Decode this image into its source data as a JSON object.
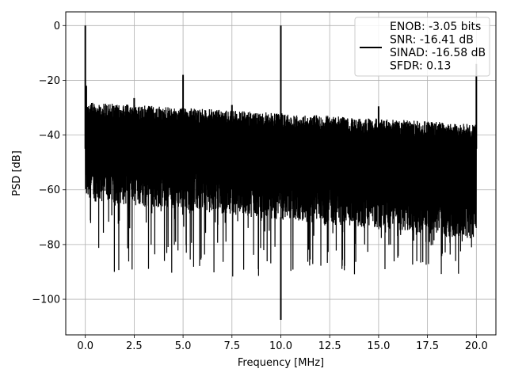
{
  "chart_data": {
    "type": "line",
    "xlabel": "Frequency [MHz]",
    "ylabel": "PSD [dB]",
    "xlim": [
      -1.0,
      21.0
    ],
    "ylim": [
      -113,
      5
    ],
    "xticks": [
      0.0,
      2.5,
      5.0,
      7.5,
      10.0,
      12.5,
      15.0,
      17.5,
      20.0
    ],
    "xtick_labels": [
      "0.0",
      "2.5",
      "5.0",
      "7.5",
      "10.0",
      "12.5",
      "15.0",
      "17.5",
      "20.0"
    ],
    "yticks": [
      0,
      -20,
      -40,
      -60,
      -80,
      -100
    ],
    "ytick_labels": [
      "0",
      "−20",
      "−40",
      "−60",
      "−80",
      "−100"
    ],
    "grid": true,
    "legend": {
      "placement": "top-right",
      "lines": [
        "ENOB: -3.05 bits",
        "SNR: -16.41 dB",
        "SINAD: -16.58 dB",
        "SFDR: 0.13"
      ]
    },
    "series": [
      {
        "color": "#000000",
        "noise_floor": {
          "x_range": [
            0.0,
            20.0
          ],
          "upper_envelope_db": [
            -28,
            -36
          ],
          "lower_envelope_db": [
            -64,
            -78
          ],
          "minimum_dips_db": -92
        },
        "peaks": [
          {
            "x": 0.0,
            "y": 0.0
          },
          {
            "x": 0.05,
            "y": -22.0
          },
          {
            "x": 2.5,
            "y": -26.5
          },
          {
            "x": 5.0,
            "y": -18.0
          },
          {
            "x": 7.5,
            "y": -29.0
          },
          {
            "x": 10.0,
            "y": 0.0
          },
          {
            "x": 15.0,
            "y": -29.5
          },
          {
            "x": 20.0,
            "y": -14.0
          }
        ],
        "notches": [
          {
            "x": 10.0,
            "y": -107.5
          }
        ]
      }
    ]
  }
}
